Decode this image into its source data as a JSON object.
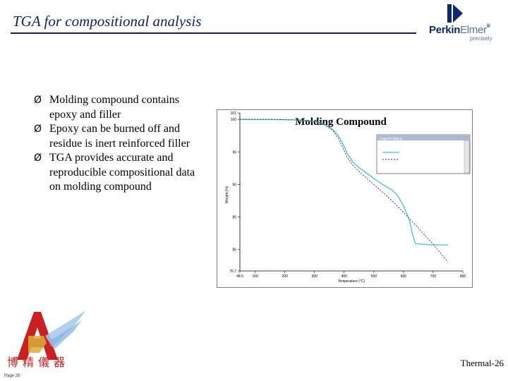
{
  "slide": {
    "title": "TGA for compositional analysis",
    "slide_code": "Thermal-26",
    "page_label": "Page 26"
  },
  "logo": {
    "brand_bold": "Perkin",
    "brand_light": "Elmer",
    "registered": "®",
    "tagline": "precisely",
    "color": "#0c2a6b"
  },
  "bullets": [
    "Molding compound contains epoxy and filler",
    "Epoxy can be burned off and residue is inert reinforced filler",
    "TGA provides accurate and reproducible compositional data on molding compound"
  ],
  "bullet_glyph": "Ø",
  "footer": {
    "company_cn": "博精儀器",
    "logo_color": "#cc1f1f"
  },
  "chart_data": {
    "type": "line",
    "title": "Molding Compound",
    "xlabel": "Temperature (°C)",
    "ylabel": "Weight (%)",
    "xlim": [
      48.5,
      800
    ],
    "ylim": [
      76.7,
      101
    ],
    "x_ticks": [
      "48.5",
      "100",
      "200",
      "300",
      "400",
      "500",
      "600",
      "700",
      "800"
    ],
    "y_ticks": [
      "101",
      "100",
      "95",
      "90",
      "85",
      "80",
      "76.7"
    ],
    "y_tick_values": [
      101,
      100,
      95,
      90,
      85,
      80,
      76.7
    ],
    "grid": false,
    "legend": {
      "title": "Legend Status",
      "placement": "top-right"
    },
    "series": [
      {
        "style": "solid",
        "color": "#3cc6c8",
        "x": [
          48.5,
          150,
          250,
          300,
          330,
          360,
          380,
          395,
          410,
          430,
          450,
          480,
          510,
          540,
          560,
          580,
          600,
          620,
          630,
          640,
          700,
          750
        ],
        "y": [
          100,
          100,
          99.9,
          99.7,
          99.3,
          98.5,
          97.5,
          96.3,
          94.8,
          93.4,
          92.6,
          91.6,
          90.6,
          89.7,
          89.2,
          88.3,
          86.7,
          84.5,
          82.4,
          80.9,
          80.7,
          80.7
        ]
      },
      {
        "style": "dashed",
        "color": "#333333",
        "x": [
          48.5,
          150,
          250,
          300,
          330,
          360,
          380,
          395,
          410,
          430,
          450,
          480,
          510,
          540,
          570,
          600,
          650,
          700,
          750
        ],
        "y": [
          100,
          100,
          99.9,
          99.7,
          99.3,
          98.4,
          97.1,
          95.7,
          94.2,
          92.9,
          92.0,
          90.8,
          89.6,
          88.4,
          87.1,
          85.7,
          83.3,
          80.8,
          78.1
        ]
      }
    ]
  }
}
